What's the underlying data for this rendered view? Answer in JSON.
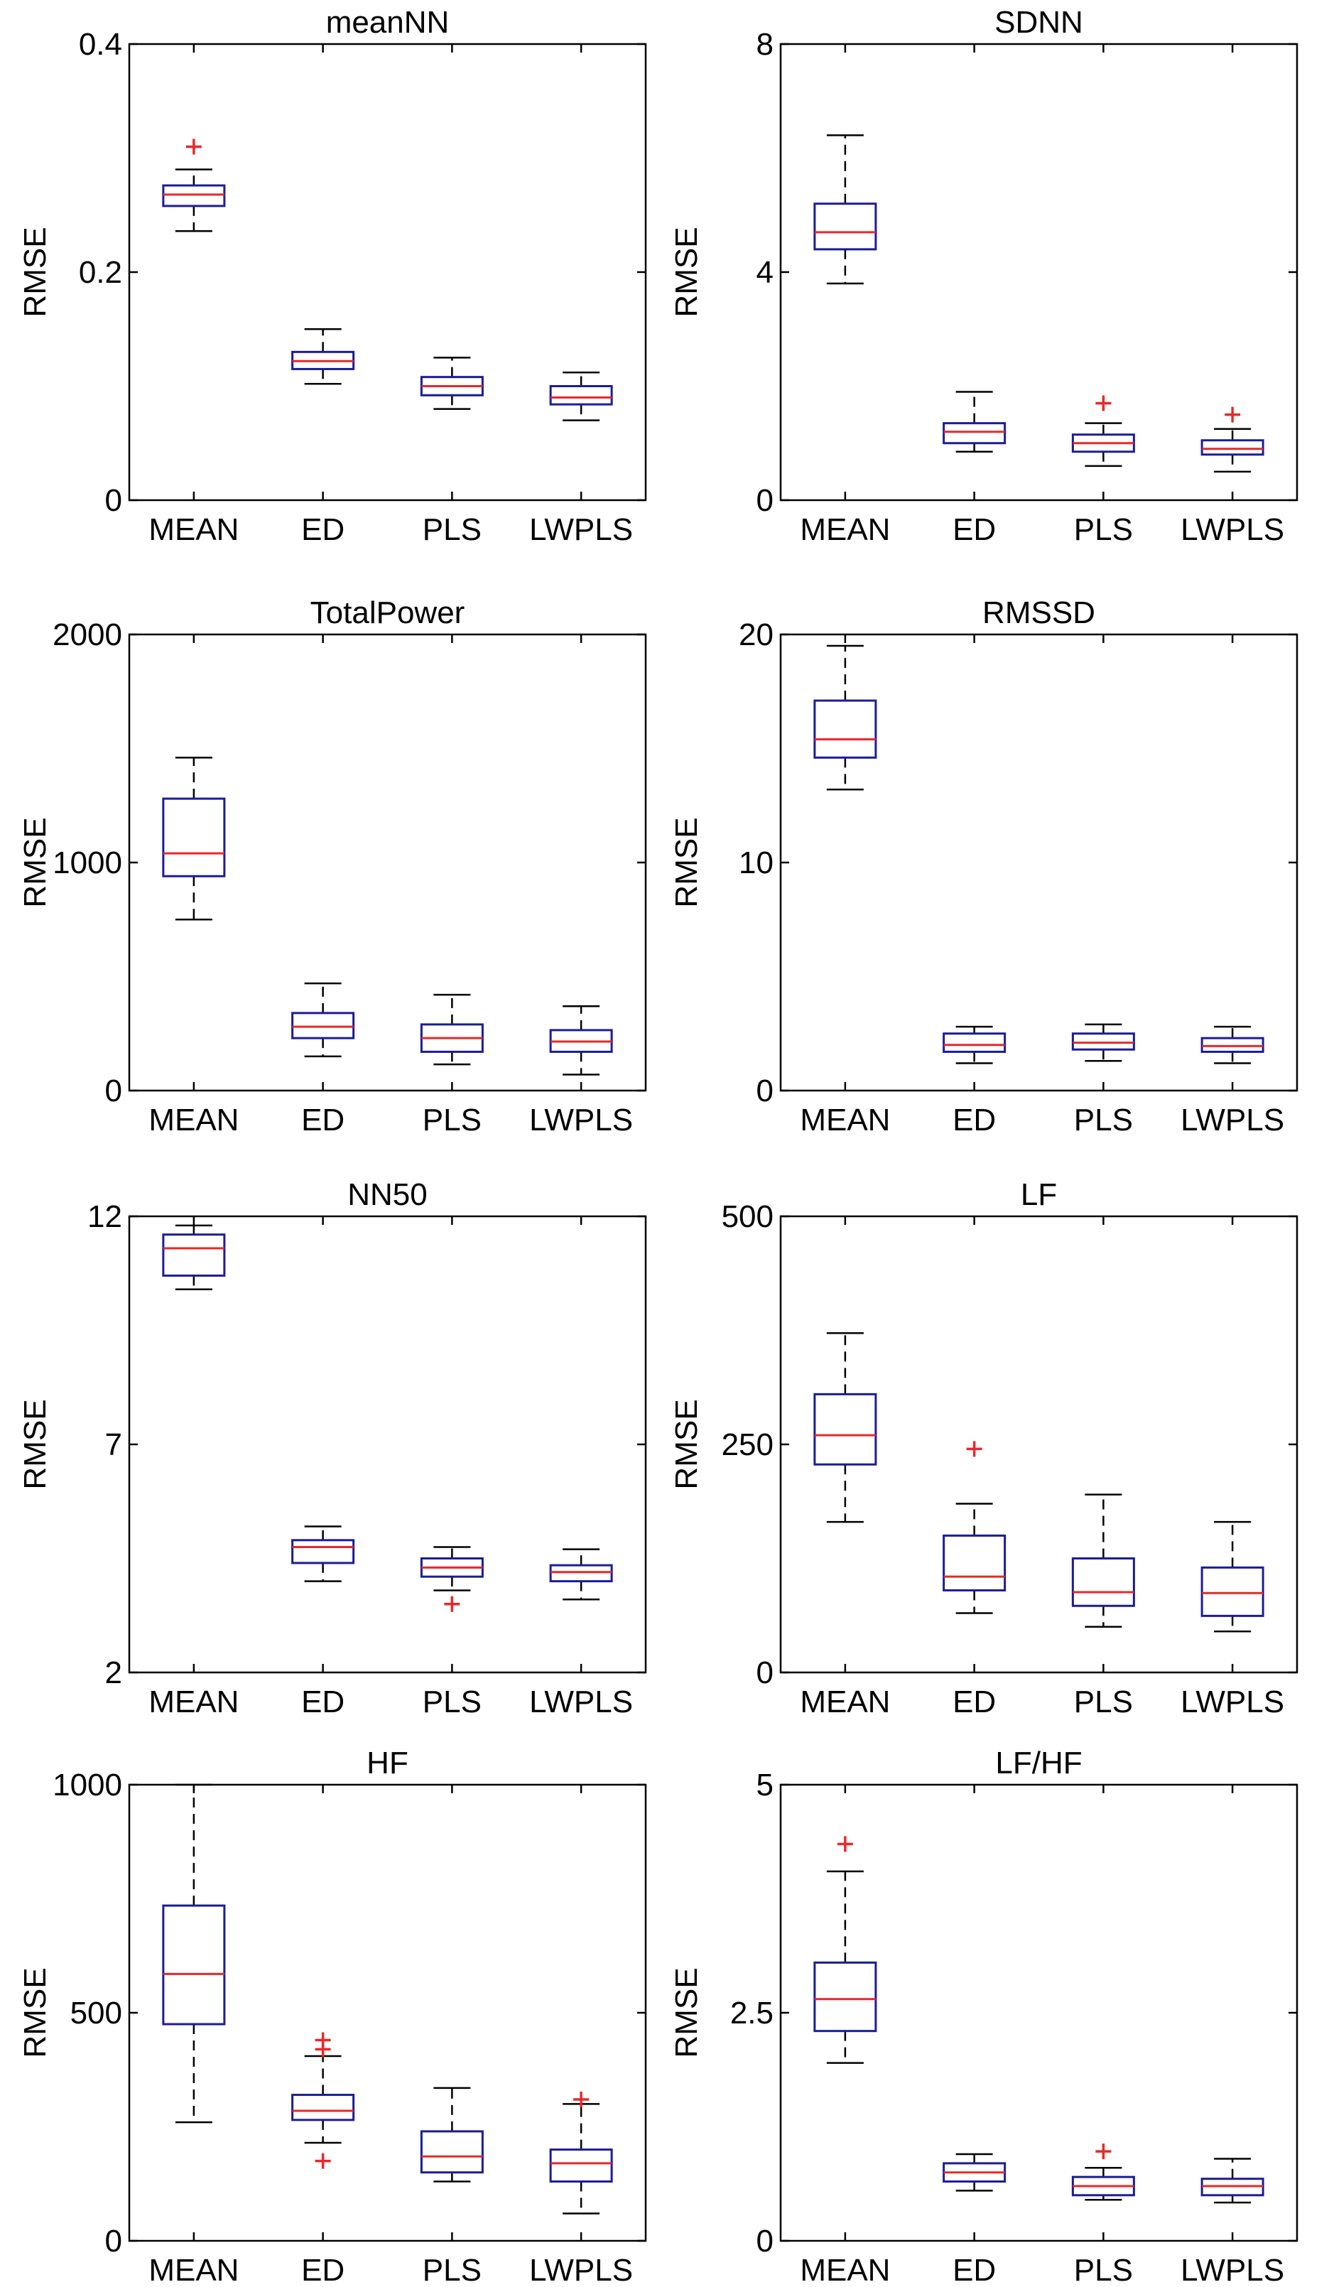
{
  "chart_data": [
    {
      "type": "box",
      "title": "meanNN",
      "ylabel": "RMSE",
      "ylim": [
        0,
        0.4
      ],
      "yticks": [
        0,
        0.2,
        0.4
      ],
      "ytick_labels": [
        "0",
        "0.2",
        "0.4"
      ],
      "categories": [
        "MEAN",
        "ED",
        "PLS",
        "LWPLS"
      ],
      "boxes": [
        {
          "min": 0.236,
          "q1": 0.258,
          "median": 0.268,
          "q3": 0.276,
          "max": 0.29,
          "outliers": [
            0.31
          ]
        },
        {
          "min": 0.102,
          "q1": 0.115,
          "median": 0.122,
          "q3": 0.13,
          "max": 0.15,
          "outliers": []
        },
        {
          "min": 0.08,
          "q1": 0.092,
          "median": 0.1,
          "q3": 0.108,
          "max": 0.125,
          "outliers": []
        },
        {
          "min": 0.07,
          "q1": 0.084,
          "median": 0.09,
          "q3": 0.1,
          "max": 0.112,
          "outliers": []
        }
      ]
    },
    {
      "type": "box",
      "title": "SDNN",
      "ylabel": "RMSE",
      "ylim": [
        0,
        8
      ],
      "yticks": [
        0,
        4,
        8
      ],
      "ytick_labels": [
        "0",
        "4",
        "8"
      ],
      "categories": [
        "MEAN",
        "ED",
        "PLS",
        "LWPLS"
      ],
      "boxes": [
        {
          "min": 3.8,
          "q1": 4.4,
          "median": 4.7,
          "q3": 5.2,
          "max": 6.4,
          "outliers": []
        },
        {
          "min": 0.85,
          "q1": 1.0,
          "median": 1.2,
          "q3": 1.35,
          "max": 1.9,
          "outliers": []
        },
        {
          "min": 0.6,
          "q1": 0.85,
          "median": 1.0,
          "q3": 1.15,
          "max": 1.35,
          "outliers": [
            1.7
          ]
        },
        {
          "min": 0.5,
          "q1": 0.8,
          "median": 0.9,
          "q3": 1.05,
          "max": 1.25,
          "outliers": [
            1.5
          ]
        }
      ]
    },
    {
      "type": "box",
      "title": "TotalPower",
      "ylabel": "RMSE",
      "ylim": [
        0,
        2000
      ],
      "yticks": [
        0,
        1000,
        2000
      ],
      "ytick_labels": [
        "0",
        "1000",
        "2000"
      ],
      "categories": [
        "MEAN",
        "ED",
        "PLS",
        "LWPLS"
      ],
      "boxes": [
        {
          "min": 750,
          "q1": 940,
          "median": 1040,
          "q3": 1280,
          "max": 1460,
          "outliers": []
        },
        {
          "min": 150,
          "q1": 230,
          "median": 280,
          "q3": 340,
          "max": 470,
          "outliers": []
        },
        {
          "min": 115,
          "q1": 170,
          "median": 230,
          "q3": 290,
          "max": 420,
          "outliers": []
        },
        {
          "min": 70,
          "q1": 170,
          "median": 215,
          "q3": 265,
          "max": 370,
          "outliers": []
        }
      ]
    },
    {
      "type": "box",
      "title": "RMSSD",
      "ylabel": "RMSE",
      "ylim": [
        0,
        20
      ],
      "yticks": [
        0,
        10,
        20
      ],
      "ytick_labels": [
        "0",
        "10",
        "20"
      ],
      "categories": [
        "MEAN",
        "ED",
        "PLS",
        "LWPLS"
      ],
      "boxes": [
        {
          "min": 13.2,
          "q1": 14.6,
          "median": 15.4,
          "q3": 17.1,
          "max": 19.5,
          "outliers": []
        },
        {
          "min": 1.2,
          "q1": 1.7,
          "median": 2.0,
          "q3": 2.5,
          "max": 2.8,
          "outliers": []
        },
        {
          "min": 1.3,
          "q1": 1.8,
          "median": 2.1,
          "q3": 2.5,
          "max": 2.9,
          "outliers": []
        },
        {
          "min": 1.2,
          "q1": 1.7,
          "median": 1.95,
          "q3": 2.3,
          "max": 2.8,
          "outliers": []
        }
      ]
    },
    {
      "type": "box",
      "title": "NN50",
      "ylabel": "RMSE",
      "ylim": [
        2,
        12
      ],
      "yticks": [
        2,
        7,
        12
      ],
      "ytick_labels": [
        "2",
        "7",
        "12"
      ],
      "categories": [
        "MEAN",
        "ED",
        "PLS",
        "LWPLS"
      ],
      "boxes": [
        {
          "min": 10.4,
          "q1": 10.7,
          "median": 11.3,
          "q3": 11.6,
          "max": 11.8,
          "outliers": []
        },
        {
          "min": 4.0,
          "q1": 4.4,
          "median": 4.75,
          "q3": 4.9,
          "max": 5.2,
          "outliers": []
        },
        {
          "min": 3.8,
          "q1": 4.1,
          "median": 4.3,
          "q3": 4.5,
          "max": 4.75,
          "outliers": [
            3.5
          ]
        },
        {
          "min": 3.6,
          "q1": 4.0,
          "median": 4.2,
          "q3": 4.35,
          "max": 4.7,
          "outliers": []
        }
      ]
    },
    {
      "type": "box",
      "title": "LF",
      "ylabel": "RMSE",
      "ylim": [
        0,
        500
      ],
      "yticks": [
        0,
        250,
        500
      ],
      "ytick_labels": [
        "0",
        "250",
        "500"
      ],
      "categories": [
        "MEAN",
        "ED",
        "PLS",
        "LWPLS"
      ],
      "boxes": [
        {
          "min": 165,
          "q1": 228,
          "median": 260,
          "q3": 305,
          "max": 372,
          "outliers": []
        },
        {
          "min": 65,
          "q1": 90,
          "median": 105,
          "q3": 150,
          "max": 185,
          "outliers": [
            245
          ]
        },
        {
          "min": 50,
          "q1": 73,
          "median": 88,
          "q3": 125,
          "max": 195,
          "outliers": []
        },
        {
          "min": 45,
          "q1": 62,
          "median": 87,
          "q3": 115,
          "max": 165,
          "outliers": []
        }
      ]
    },
    {
      "type": "box",
      "title": "HF",
      "ylabel": "RMSE",
      "ylim": [
        0,
        1000
      ],
      "yticks": [
        0,
        500,
        1000
      ],
      "ytick_labels": [
        "0",
        "500",
        "1000"
      ],
      "categories": [
        "MEAN",
        "ED",
        "PLS",
        "LWPLS"
      ],
      "boxes": [
        {
          "min": 260,
          "q1": 475,
          "median": 585,
          "q3": 735,
          "max": 1000,
          "outliers": []
        },
        {
          "min": 215,
          "q1": 265,
          "median": 285,
          "q3": 320,
          "max": 405,
          "outliers": [
            175,
            420,
            440
          ]
        },
        {
          "min": 130,
          "q1": 150,
          "median": 185,
          "q3": 240,
          "max": 335,
          "outliers": []
        },
        {
          "min": 60,
          "q1": 130,
          "median": 170,
          "q3": 200,
          "max": 300,
          "outliers": [
            310
          ]
        }
      ]
    },
    {
      "type": "box",
      "title": "LF/HF",
      "ylabel": "RMSE",
      "ylim": [
        0,
        5
      ],
      "yticks": [
        0,
        2.5,
        5
      ],
      "ytick_labels": [
        "0",
        "2.5",
        "5"
      ],
      "categories": [
        "MEAN",
        "ED",
        "PLS",
        "LWPLS"
      ],
      "boxes": [
        {
          "min": 1.95,
          "q1": 2.3,
          "median": 2.65,
          "q3": 3.05,
          "max": 4.05,
          "outliers": [
            4.35
          ]
        },
        {
          "min": 0.55,
          "q1": 0.65,
          "median": 0.75,
          "q3": 0.85,
          "max": 0.95,
          "outliers": []
        },
        {
          "min": 0.45,
          "q1": 0.5,
          "median": 0.6,
          "q3": 0.7,
          "max": 0.8,
          "outliers": [
            0.98
          ]
        },
        {
          "min": 0.42,
          "q1": 0.5,
          "median": 0.6,
          "q3": 0.68,
          "max": 0.9,
          "outliers": []
        }
      ]
    }
  ]
}
